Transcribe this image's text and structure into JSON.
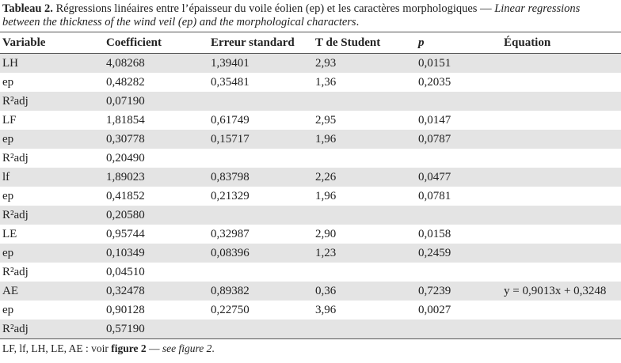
{
  "caption": {
    "label": "Tableau 2.",
    "french": " Régressions linéaires entre l’épaisseur du voile éolien (ep) et les caractères morphologiques — ",
    "english": "Linear regressions between the thickness of the wind veil (ep) and the morphological characters",
    "end": "."
  },
  "table": {
    "header": [
      "Variable",
      "Coefficient",
      "Erreur standard",
      "T de Student",
      "p",
      "Équation"
    ],
    "rows": [
      [
        "LH",
        "4,08268",
        "1,39401",
        "2,93",
        "0,0151",
        null
      ],
      [
        "ep",
        "0,48282",
        "0,35481",
        "1,36",
        "0,2035",
        null
      ],
      [
        "R²adj",
        "0,07190",
        null,
        null,
        null,
        null
      ],
      [
        "LF",
        "1,81854",
        "0,61749",
        "2,95",
        "0,0147",
        null
      ],
      [
        "ep",
        "0,30778",
        "0,15717",
        "1,96",
        "0,0787",
        null
      ],
      [
        "R²adj",
        "0,20490",
        null,
        null,
        null,
        null
      ],
      [
        "lf",
        "1,89023",
        "0,83798",
        "2,26",
        "0,0477",
        null
      ],
      [
        "ep",
        "0,41852",
        "0,21329",
        "1,96",
        "0,0781",
        null
      ],
      [
        "R²adj",
        "0,20580",
        null,
        null,
        null,
        null
      ],
      [
        "LE",
        "0,95744",
        "0,32987",
        "2,90",
        "0,0158",
        null
      ],
      [
        "ep",
        "0,10349",
        "0,08396",
        "1,23",
        "0,2459",
        null
      ],
      [
        "R²adj",
        "0,04510",
        null,
        null,
        null,
        null
      ],
      [
        "AE",
        "0,32478",
        "0,89382",
        "0,36",
        "0,7239",
        "y = 0,9013x + 0,3248"
      ],
      [
        "ep",
        "0,90128",
        "0,22750",
        "3,96",
        "0,0027",
        null
      ],
      [
        "R²adj",
        "0,57190",
        null,
        null,
        null,
        null
      ]
    ]
  },
  "footnote": {
    "text": "LF, lf, LH, LE, AE : voir ",
    "bold": "figure 2",
    "sep": " — ",
    "italic": "see figure 2",
    "end": "."
  }
}
